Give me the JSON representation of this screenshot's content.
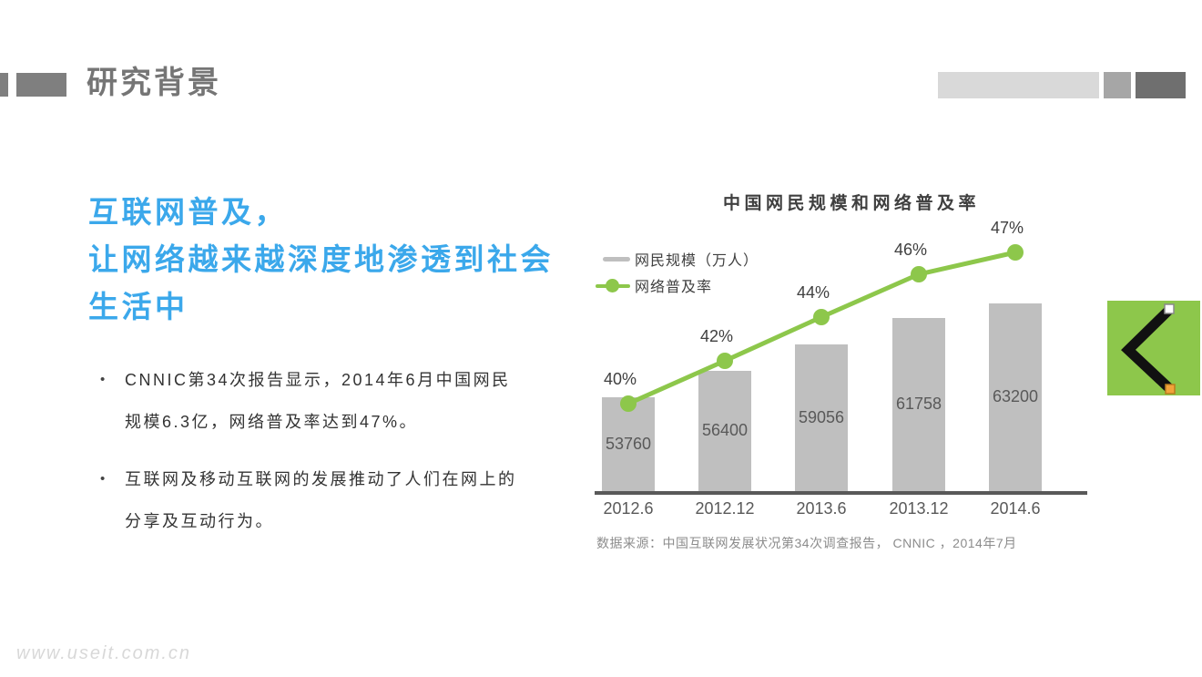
{
  "header": {
    "title": "研究背景",
    "decor_colors": {
      "left_small": "#7f7f7f",
      "left_large": "#7f7f7f",
      "right_light": "#d9d9d9",
      "right_mid": "#a6a6a6",
      "right_dark": "#6f6f6f"
    }
  },
  "headline": {
    "lines": [
      "互联网普及，",
      "让网络越来越深度地渗透到社会",
      "生活中"
    ],
    "color": "#3BA8EB"
  },
  "bullets": [
    "CNNIC第34次报告显示，2014年6月中国网民规模6.3亿，网络普及率达到47%。",
    "互联网及移动互联网的发展推动了人们在网上的分享及互动行为。"
  ],
  "chart_data": {
    "type": "bar",
    "title": "中国网民规模和网络普及率",
    "categories": [
      "2012.6",
      "2012.12",
      "2013.6",
      "2013.12",
      "2014.6"
    ],
    "series": [
      {
        "name": "网民规模（万人）",
        "type": "bar",
        "values": [
          53760,
          56400,
          59056,
          61758,
          63200
        ],
        "color": "#BFBFBF"
      },
      {
        "name": "网络普及率",
        "type": "line",
        "values": [
          40,
          42,
          44,
          46,
          47
        ],
        "labels": [
          "40%",
          "42%",
          "44%",
          "46%",
          "47%"
        ],
        "color": "#8DC74B"
      }
    ],
    "legend_position": "top-left",
    "grid": false,
    "value_labels_visible": true,
    "axis_color": "#595959",
    "source": "数据来源：中国互联网发展状况第34次调查报告， CNNIC ，2014年7月"
  },
  "back_button": {
    "icon": "back-chevron",
    "bg": "#8DC74B",
    "handle_top_color": "#ffffff",
    "handle_bottom_color": "#F2A33A"
  },
  "watermark": "www.useit.com.cn"
}
